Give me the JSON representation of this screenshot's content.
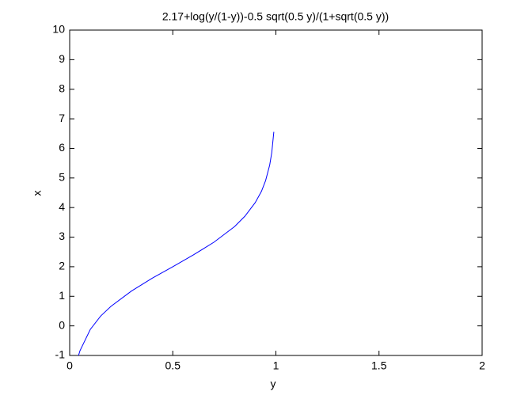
{
  "chart_data": {
    "type": "line",
    "title": "2.17+log(y/(1-y))-0.5 sqrt(0.5 y)/(1+sqrt(0.5 y))",
    "x_label": "y",
    "y_label": "x",
    "x": [
      0.043,
      0.05,
      0.1,
      0.15,
      0.2,
      0.3,
      0.4,
      0.5,
      0.6,
      0.7,
      0.8,
      0.85,
      0.9,
      0.93,
      0.95,
      0.97,
      0.98,
      0.99
    ],
    "series": [
      {
        "color": "#0000ff",
        "values": [
          -1.0,
          -0.84,
          -0.12,
          0.33,
          0.66,
          1.18,
          1.61,
          2.0,
          2.4,
          2.83,
          3.36,
          3.71,
          4.17,
          4.55,
          4.91,
          5.44,
          5.86,
          6.56
        ]
      }
    ],
    "xlim": [
      0,
      2
    ],
    "xticks": [
      0,
      0.5,
      1,
      1.5,
      2
    ],
    "ylim": [
      -1,
      10
    ],
    "yticks": [
      -1,
      0,
      1,
      2,
      3,
      4,
      5,
      6,
      7,
      8,
      9,
      10
    ],
    "grid": false
  }
}
